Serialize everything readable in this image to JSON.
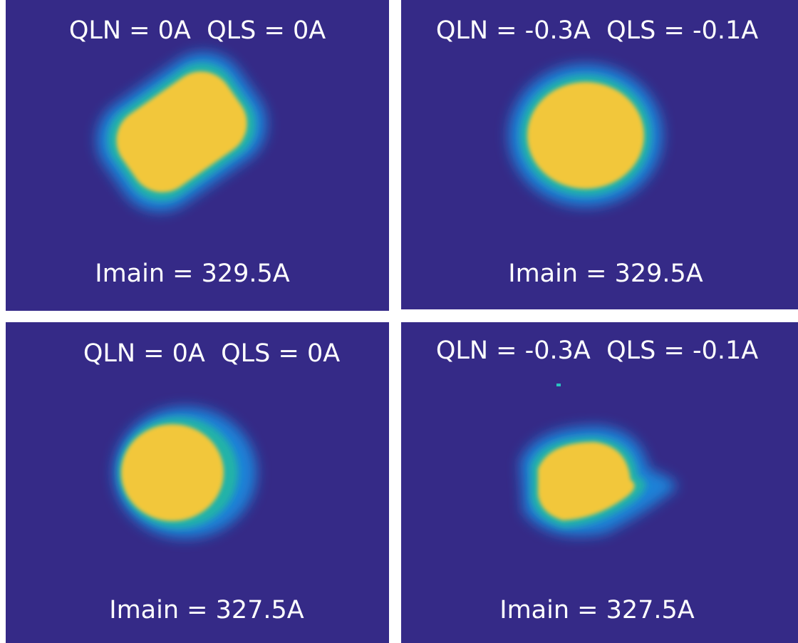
{
  "panels": [
    {
      "top_label": "QLN = 0A  QLS = 0A",
      "bottom_label": "Imain = 329.5A"
    },
    {
      "top_label": "QLN = -0.3A  QLS = -0.1A",
      "bottom_label": "Imain = 329.5A"
    },
    {
      "top_label": "QLN = 0A  QLS = 0A",
      "bottom_label": "Imain = 327.5A"
    },
    {
      "top_label": "QLN = -0.3A  QLS = -0.1A",
      "bottom_label": "Imain = 327.5A"
    }
  ]
}
